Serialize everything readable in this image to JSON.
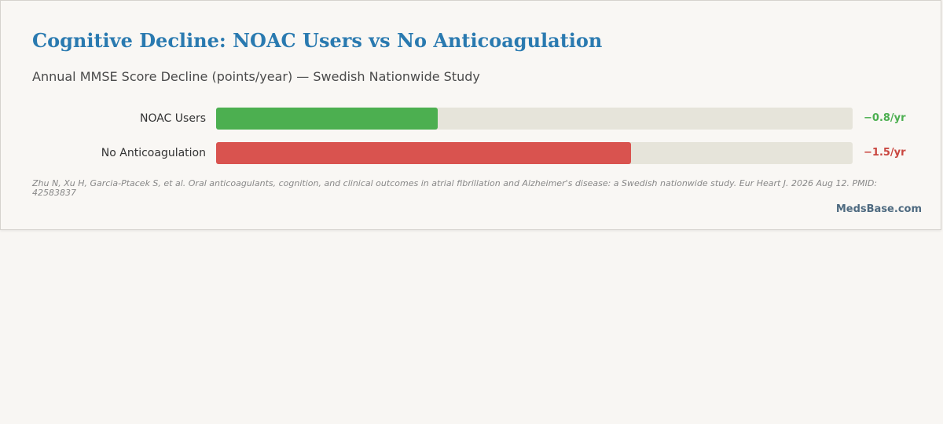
{
  "chart_data": {
    "type": "bar",
    "orientation": "horizontal",
    "title": "Cognitive Decline: NOAC Users vs No Anticoagulation",
    "subtitle": "Annual MMSE Score Decline (points/year) — Swedish Nationwide Study",
    "categories": [
      "NOAC Users",
      "No Anticoagulation"
    ],
    "values": [
      -0.8,
      -1.5
    ],
    "value_labels": [
      "−0.8/yr",
      "−1.5/yr"
    ],
    "scale_max_magnitude": 2.3,
    "colors": [
      "#4caf50",
      "#d9534f"
    ],
    "label_colors": [
      "#4caf50",
      "#c9463f"
    ],
    "track_color": "#e6e4da",
    "grid": false
  },
  "citation": "Zhu N, Xu H, Garcia-Ptacek S, et al. Oral anticoagulants, cognition, and clinical outcomes in atrial fibrillation and Alzheimer's disease: a Swedish nationwide study. Eur Heart J. 2026 Aug 12. PMID: 42583837",
  "brand": "MedsBase.com",
  "colors": {
    "title": "#2a7ab0",
    "brand": "#4e6a80"
  }
}
